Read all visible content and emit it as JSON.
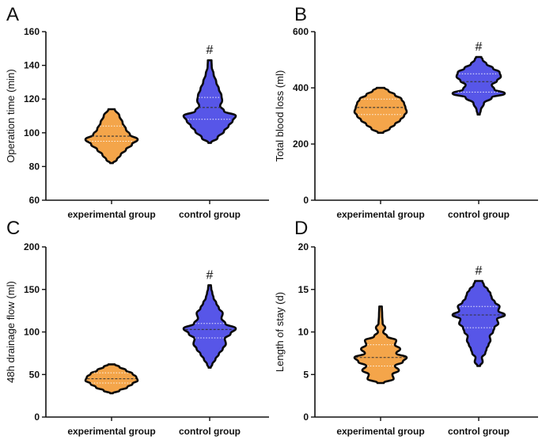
{
  "figure_title": "",
  "colors": {
    "experimental": "#F4A54A",
    "control": "#5756E8",
    "outline": "#0a0a0a",
    "median_line": "#333333",
    "quartile_line": "#ffffff"
  },
  "chart_data": [
    {
      "panel": "A",
      "type": "violin",
      "ylabel": "Operation time (min)",
      "ylim": [
        60,
        160
      ],
      "yticks": [
        60,
        80,
        100,
        120,
        140,
        160
      ],
      "categories": [
        "experimental group",
        "control group"
      ],
      "annotations": [
        {
          "category": "control group",
          "text": "#"
        }
      ],
      "series": [
        {
          "name": "experimental group",
          "min": 82,
          "max": 114,
          "median": 98,
          "q1": 95,
          "q3": 104,
          "profile": [
            [
              82,
              0.05
            ],
            [
              84,
              0.2
            ],
            [
              87,
              0.35
            ],
            [
              90,
              0.55
            ],
            [
              93,
              0.78
            ],
            [
              96,
              1.0
            ],
            [
              99,
              0.7
            ],
            [
              102,
              0.55
            ],
            [
              106,
              0.42
            ],
            [
              110,
              0.3
            ],
            [
              114,
              0.12
            ]
          ]
        },
        {
          "name": "control group",
          "min": 94,
          "max": 143,
          "median": 115,
          "q1": 108,
          "q3": 121,
          "profile": [
            [
              94,
              0.05
            ],
            [
              97,
              0.3
            ],
            [
              101,
              0.55
            ],
            [
              104,
              0.72
            ],
            [
              107,
              0.88
            ],
            [
              110,
              1.0
            ],
            [
              113,
              0.55
            ],
            [
              116,
              0.4
            ],
            [
              119,
              0.48
            ],
            [
              122,
              0.45
            ],
            [
              126,
              0.35
            ],
            [
              130,
              0.25
            ],
            [
              135,
              0.15
            ],
            [
              139,
              0.08
            ],
            [
              143,
              0.07
            ]
          ]
        }
      ]
    },
    {
      "panel": "B",
      "type": "violin",
      "ylabel": "Total blood loss (ml)",
      "ylim": [
        0,
        600
      ],
      "yticks": [
        0,
        200,
        400,
        600
      ],
      "categories": [
        "experimental group",
        "control group"
      ],
      "annotations": [
        {
          "category": "control group",
          "text": "#"
        }
      ],
      "series": [
        {
          "name": "experimental group",
          "min": 240,
          "max": 400,
          "median": 330,
          "q1": 305,
          "q3": 360,
          "profile": [
            [
              240,
              0.1
            ],
            [
              255,
              0.35
            ],
            [
              270,
              0.55
            ],
            [
              285,
              0.75
            ],
            [
              300,
              0.9
            ],
            [
              315,
              1.0
            ],
            [
              330,
              0.95
            ],
            [
              345,
              0.9
            ],
            [
              360,
              0.8
            ],
            [
              375,
              0.55
            ],
            [
              390,
              0.3
            ],
            [
              400,
              0.15
            ]
          ]
        },
        {
          "name": "control group",
          "min": 305,
          "max": 510,
          "median": 422,
          "q1": 385,
          "q3": 450,
          "profile": [
            [
              305,
              0.04
            ],
            [
              320,
              0.08
            ],
            [
              345,
              0.2
            ],
            [
              365,
              0.5
            ],
            [
              380,
              1.0
            ],
            [
              395,
              0.6
            ],
            [
              410,
              0.5
            ],
            [
              425,
              0.7
            ],
            [
              440,
              0.85
            ],
            [
              455,
              0.8
            ],
            [
              470,
              0.55
            ],
            [
              485,
              0.3
            ],
            [
              500,
              0.15
            ],
            [
              510,
              0.1
            ]
          ]
        }
      ]
    },
    {
      "panel": "C",
      "type": "violin",
      "ylabel": "48h drainage flow (ml)",
      "ylim": [
        0,
        200
      ],
      "yticks": [
        0,
        50,
        100,
        150,
        200
      ],
      "categories": [
        "experimental group",
        "control group"
      ],
      "annotations": [
        {
          "category": "control group",
          "text": "#"
        }
      ],
      "series": [
        {
          "name": "experimental group",
          "min": 28,
          "max": 62,
          "median": 45,
          "q1": 40,
          "q3": 52,
          "profile": [
            [
              28,
              0.05
            ],
            [
              31,
              0.3
            ],
            [
              35,
              0.6
            ],
            [
              39,
              0.8
            ],
            [
              43,
              1.0
            ],
            [
              47,
              0.95
            ],
            [
              51,
              0.8
            ],
            [
              55,
              0.55
            ],
            [
              59,
              0.3
            ],
            [
              62,
              0.12
            ]
          ]
        },
        {
          "name": "control group",
          "min": 58,
          "max": 155,
          "median": 103,
          "q1": 93,
          "q3": 110,
          "profile": [
            [
              58,
              0.04
            ],
            [
              62,
              0.1
            ],
            [
              68,
              0.22
            ],
            [
              74,
              0.35
            ],
            [
              80,
              0.5
            ],
            [
              86,
              0.62
            ],
            [
              92,
              0.58
            ],
            [
              98,
              0.8
            ],
            [
              104,
              1.0
            ],
            [
              110,
              0.6
            ],
            [
              116,
              0.45
            ],
            [
              122,
              0.5
            ],
            [
              128,
              0.35
            ],
            [
              134,
              0.25
            ],
            [
              140,
              0.15
            ],
            [
              146,
              0.1
            ],
            [
              151,
              0.06
            ],
            [
              155,
              0.05
            ]
          ]
        }
      ]
    },
    {
      "panel": "D",
      "type": "violin",
      "ylabel": "Length of stay (d)",
      "ylim": [
        0,
        20
      ],
      "yticks": [
        0,
        5,
        10,
        15,
        20
      ],
      "categories": [
        "experimental group",
        "control group"
      ],
      "annotations": [
        {
          "category": "control group",
          "text": "#"
        }
      ],
      "series": [
        {
          "name": "experimental group",
          "min": 4,
          "max": 13,
          "median": 7,
          "q1": 6,
          "q3": 8.5,
          "profile": [
            [
              4,
              0.12
            ],
            [
              4.5,
              0.5
            ],
            [
              5,
              0.45
            ],
            [
              5.5,
              0.7
            ],
            [
              6,
              0.55
            ],
            [
              6.5,
              0.85
            ],
            [
              7,
              1.0
            ],
            [
              7.5,
              0.6
            ],
            [
              8,
              0.75
            ],
            [
              8.5,
              0.55
            ],
            [
              9,
              0.6
            ],
            [
              9.5,
              0.25
            ],
            [
              10,
              0.1
            ],
            [
              10.5,
              0.18
            ],
            [
              11,
              0.08
            ],
            [
              12,
              0.06
            ],
            [
              13,
              0.05
            ]
          ]
        },
        {
          "name": "control group",
          "min": 6,
          "max": 16,
          "median": 12,
          "q1": 10.5,
          "q3": 13,
          "profile": [
            [
              6,
              0.05
            ],
            [
              6.5,
              0.15
            ],
            [
              7,
              0.12
            ],
            [
              7.5,
              0.25
            ],
            [
              8,
              0.3
            ],
            [
              8.5,
              0.38
            ],
            [
              9,
              0.45
            ],
            [
              9.5,
              0.42
            ],
            [
              10,
              0.55
            ],
            [
              10.5,
              0.6
            ],
            [
              11,
              0.75
            ],
            [
              11.5,
              0.7
            ],
            [
              12,
              1.0
            ],
            [
              12.5,
              0.75
            ],
            [
              13,
              0.8
            ],
            [
              13.5,
              0.62
            ],
            [
              14,
              0.5
            ],
            [
              14.5,
              0.45
            ],
            [
              15,
              0.35
            ],
            [
              15.5,
              0.2
            ],
            [
              16,
              0.14
            ]
          ]
        }
      ]
    }
  ]
}
